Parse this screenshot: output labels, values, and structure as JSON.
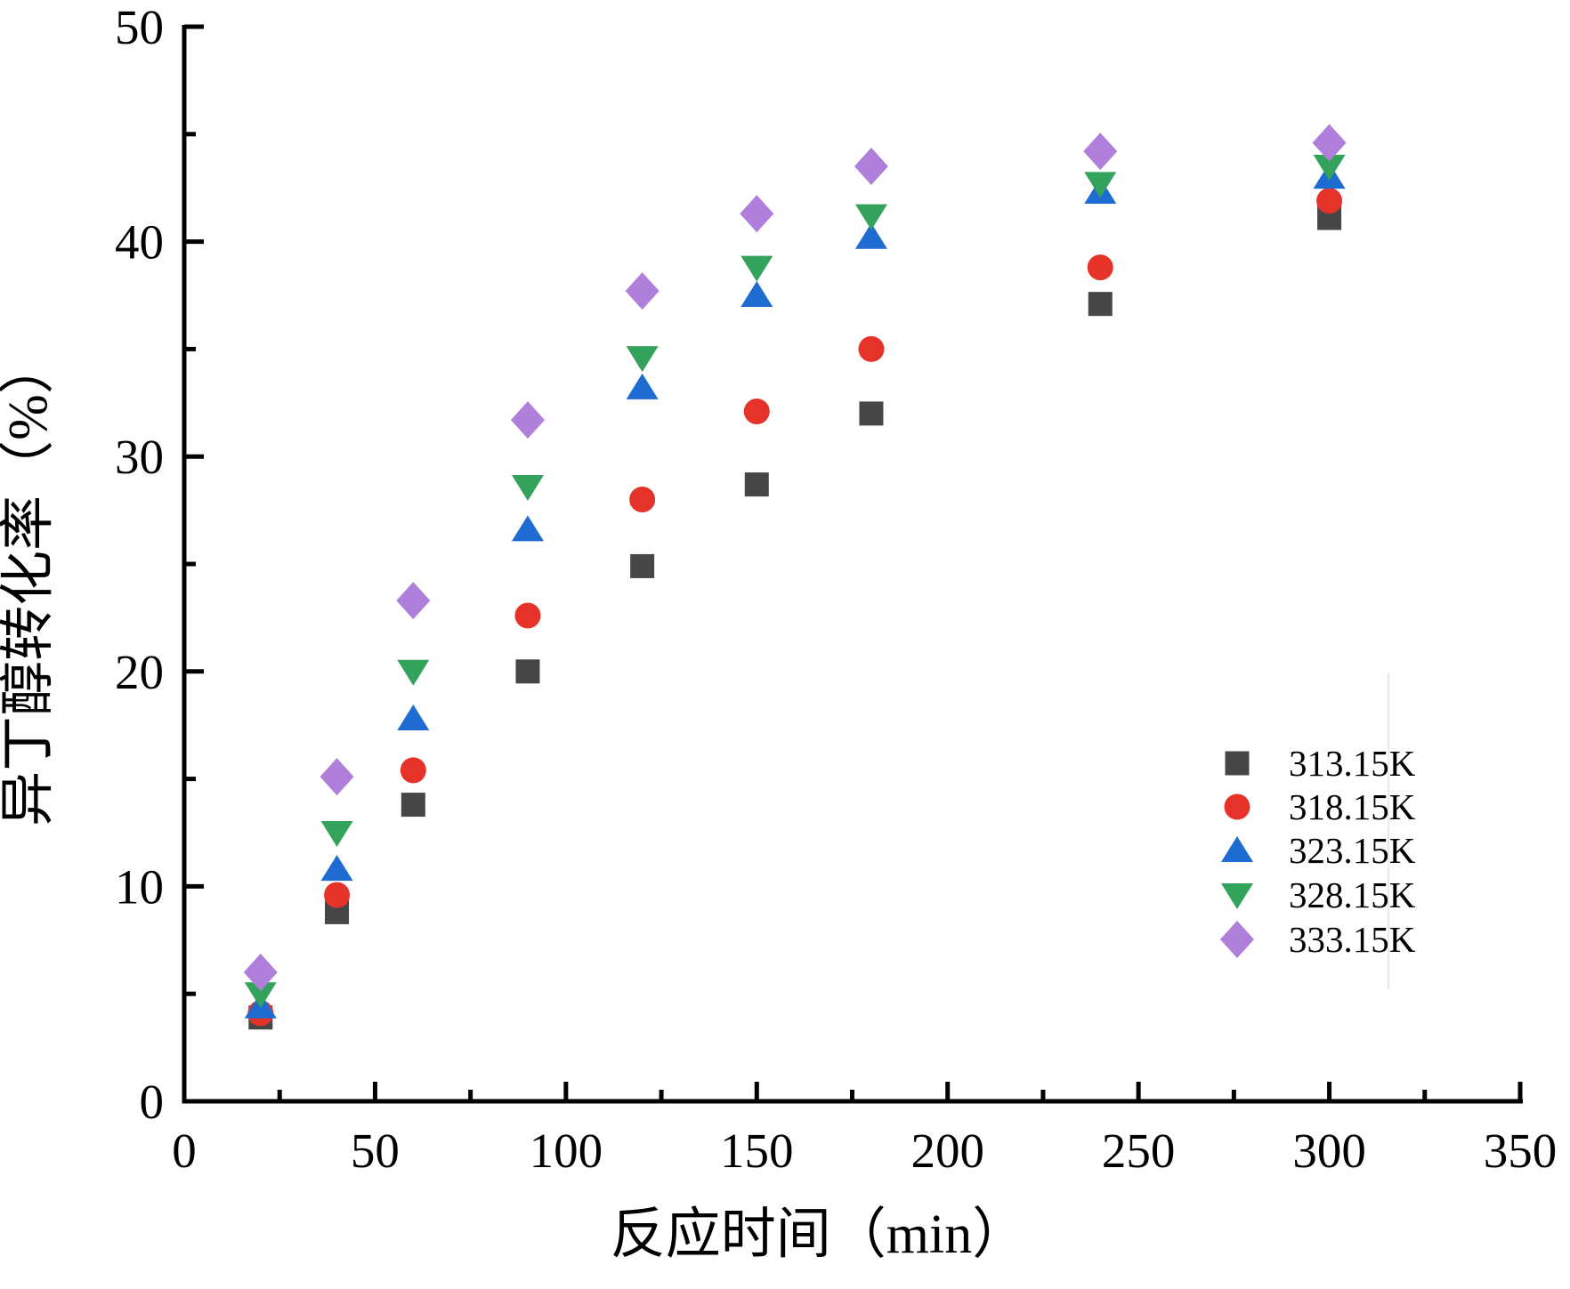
{
  "figure": {
    "background": "#ffffff",
    "artifact_line_color": "#ebebeb"
  },
  "chart_data": {
    "type": "scatter",
    "title": "",
    "xlabel": "反应时间（min）",
    "ylabel": "异丁醇转化率（%）",
    "xlim": [
      0,
      350
    ],
    "ylim": [
      0,
      50
    ],
    "x_major_ticks": [
      0,
      50,
      100,
      150,
      200,
      250,
      300,
      350
    ],
    "x_minor_ticks": [
      25,
      75,
      125,
      175,
      225,
      275,
      325
    ],
    "y_major_ticks": [
      0,
      10,
      20,
      30,
      40,
      50
    ],
    "y_minor_ticks": [
      5,
      15,
      25,
      35,
      45
    ],
    "grid": false,
    "legend_position": "inside lower-right",
    "x": [
      20,
      40,
      60,
      90,
      120,
      150,
      180,
      240,
      300
    ],
    "series": [
      {
        "name": "313.15K",
        "marker": "square",
        "color": "#464646",
        "values": [
          3.9,
          8.8,
          13.8,
          20.0,
          24.9,
          28.7,
          32.0,
          37.1,
          41.1
        ]
      },
      {
        "name": "318.15K",
        "marker": "circle",
        "color": "#e6332a",
        "values": [
          4.1,
          9.6,
          15.4,
          22.6,
          28.0,
          32.1,
          35.0,
          38.8,
          41.9
        ]
      },
      {
        "name": "323.15K",
        "marker": "triangle-up",
        "color": "#1e6bd2",
        "values": [
          4.4,
          10.8,
          17.8,
          26.6,
          33.2,
          37.5,
          40.2,
          42.3,
          43.0
        ]
      },
      {
        "name": "328.15K",
        "marker": "triangle-down",
        "color": "#33a35c",
        "values": [
          5.0,
          12.5,
          20.0,
          28.6,
          34.6,
          38.8,
          41.2,
          42.7,
          43.5
        ]
      },
      {
        "name": "333.15K",
        "marker": "diamond",
        "color": "#b07edb",
        "values": [
          6.0,
          15.1,
          23.3,
          31.7,
          37.7,
          41.3,
          43.5,
          44.2,
          44.6
        ]
      }
    ]
  }
}
